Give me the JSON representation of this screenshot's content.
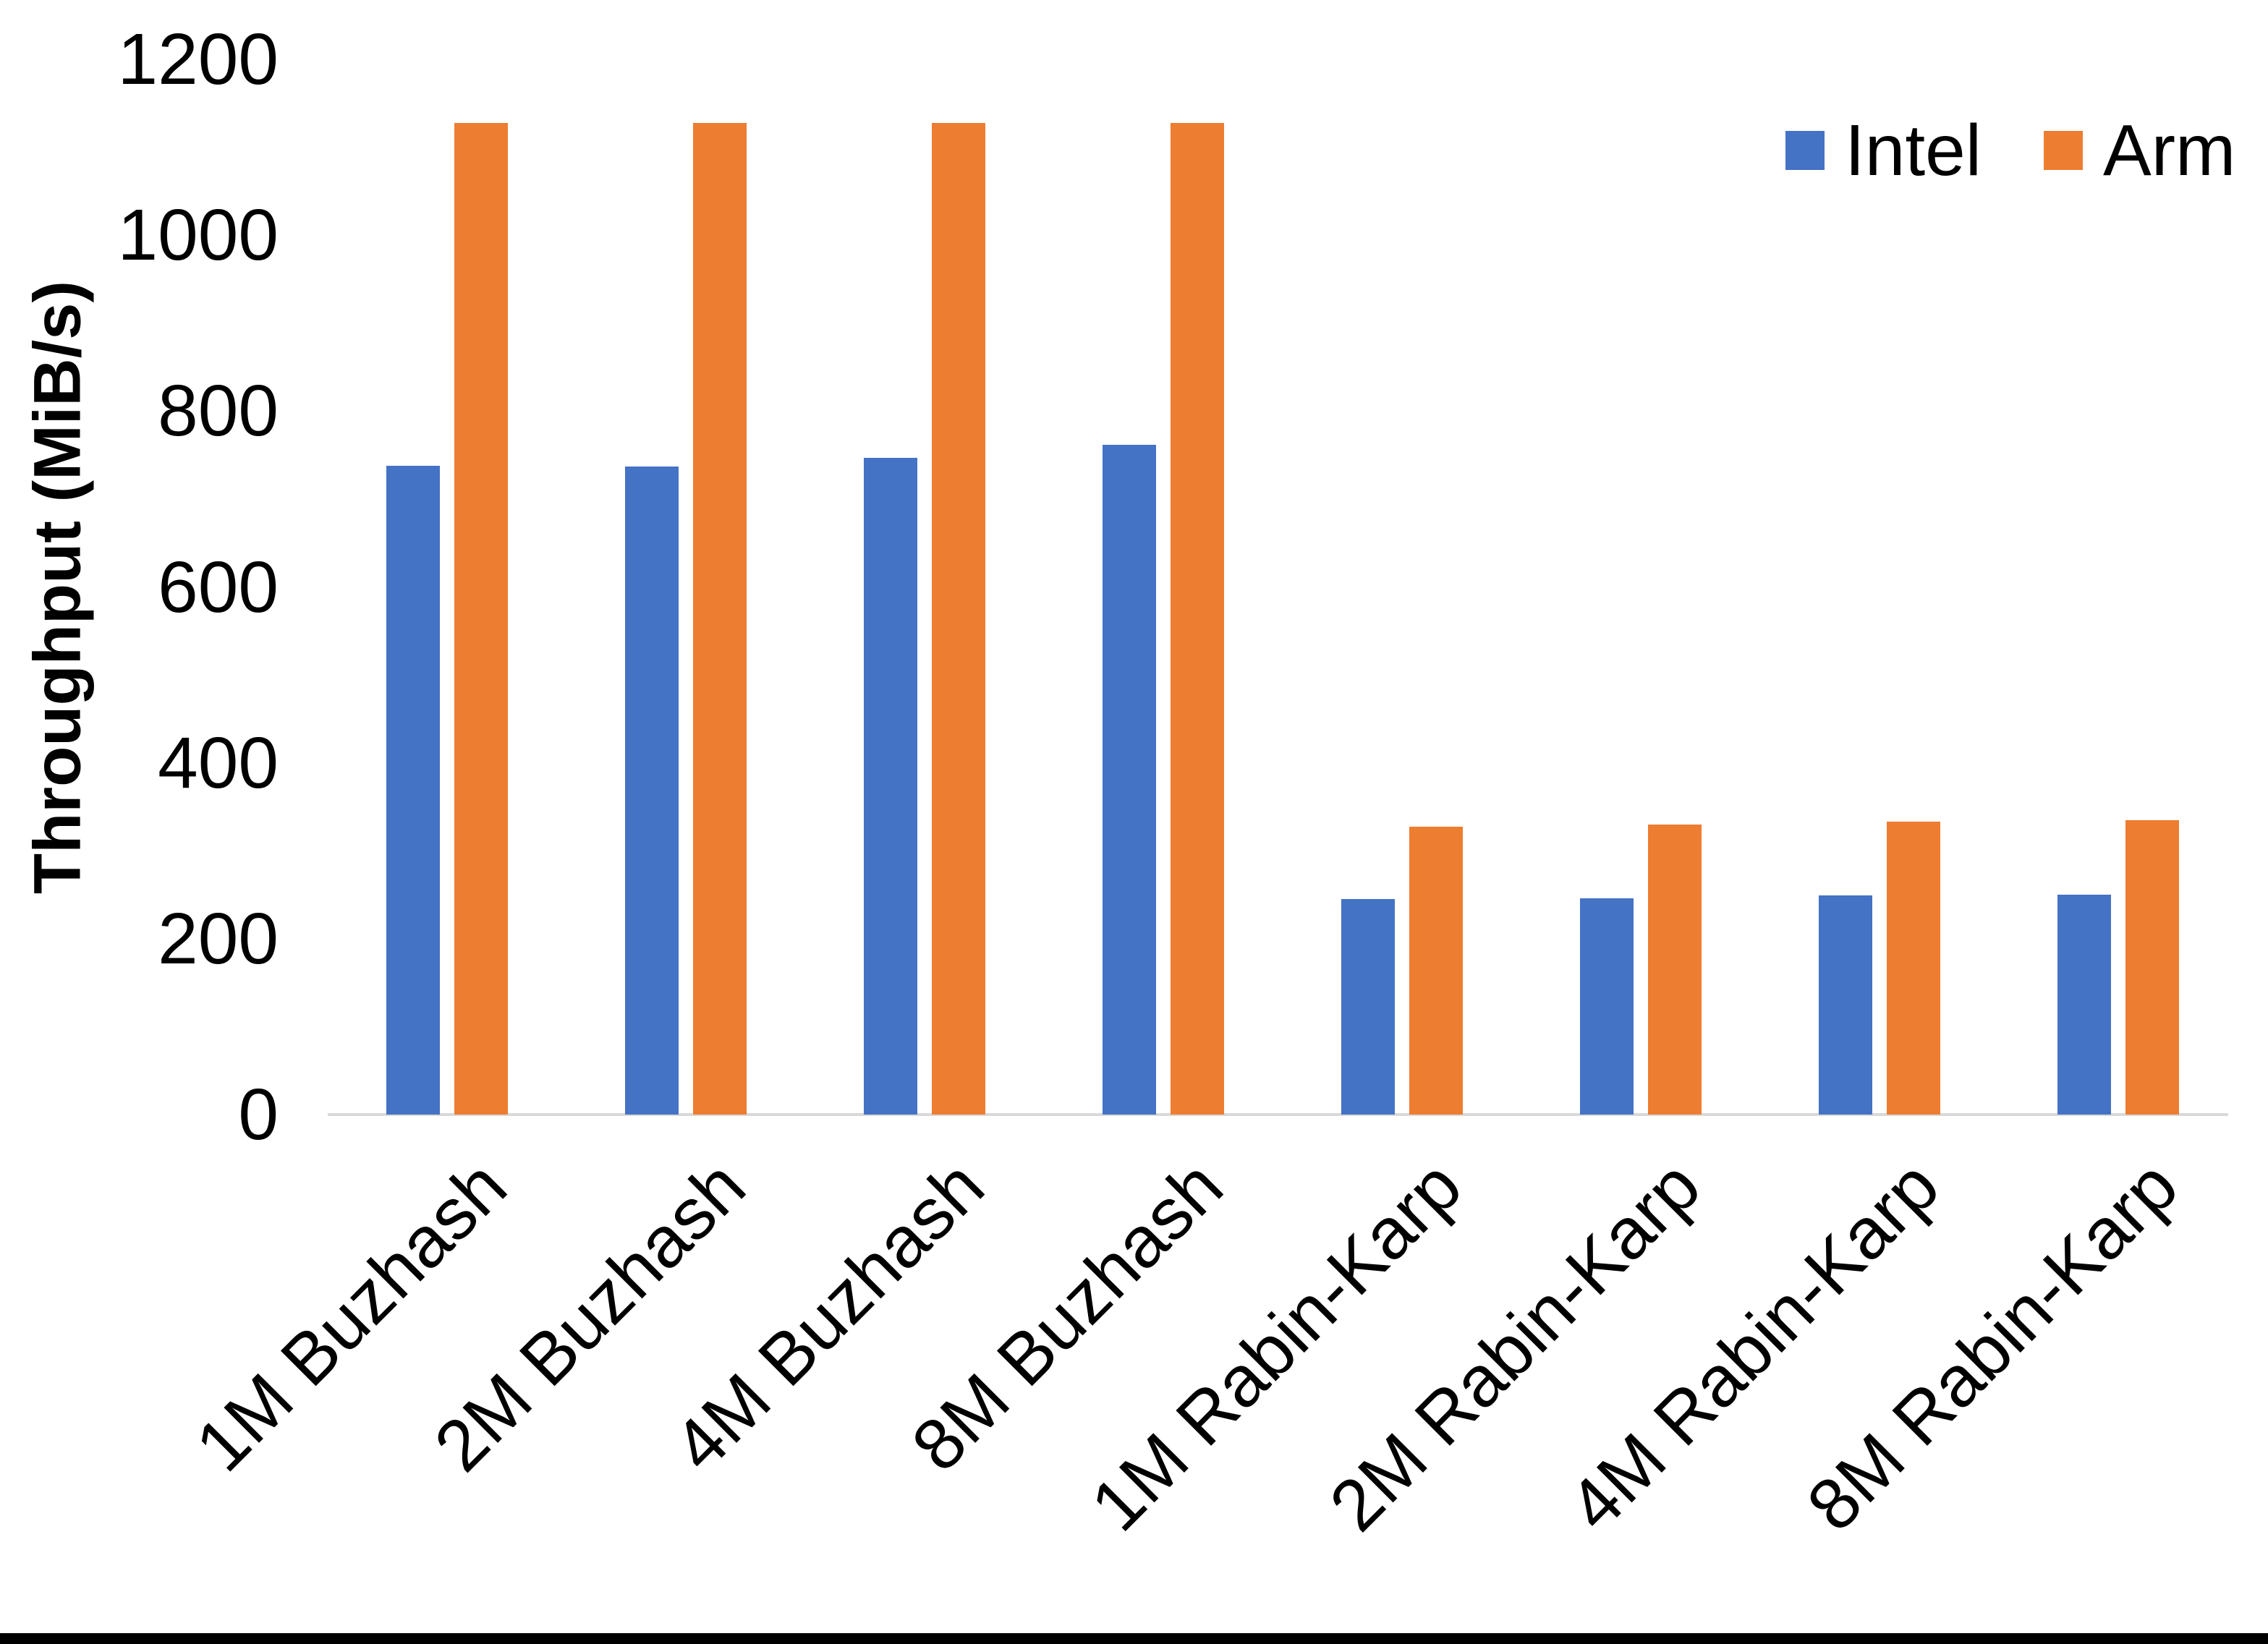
{
  "chart_data": {
    "type": "bar",
    "title": "",
    "xlabel": "",
    "ylabel": "Throughput (MiB/s)",
    "ylim": [
      0,
      1200
    ],
    "yticks": [
      0,
      200,
      400,
      600,
      800,
      1000,
      1200
    ],
    "grid": false,
    "legend_position": "top-right",
    "categories": [
      "1M Buzhash",
      "2M Buzhash",
      "4M Buzhash",
      "8M Buzhash",
      "1M Rabin-Karp",
      "2M Rabin-Karp",
      "4M Rabin-Karp",
      "8M Rabin-Karp"
    ],
    "series": [
      {
        "name": "Intel",
        "color": "#4472c4",
        "values": [
          738,
          737,
          747,
          762,
          245,
          246,
          249,
          250
        ]
      },
      {
        "name": "Arm",
        "color": "#ed7d31",
        "values": [
          1128,
          1128,
          1128,
          1128,
          327,
          330,
          333,
          335
        ]
      }
    ],
    "colors": {
      "axis_line": "#d9d9d9",
      "text": "#000000",
      "background": "#ffffff",
      "bottom_border": "#000000"
    }
  }
}
